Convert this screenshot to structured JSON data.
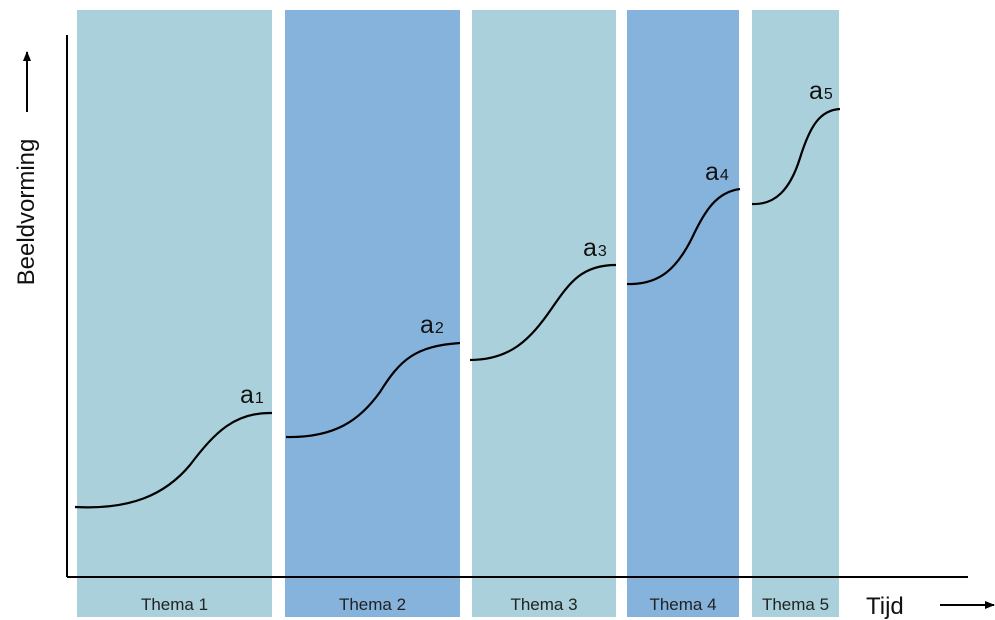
{
  "axes": {
    "y_title": "Beeldvorming",
    "x_title": "Tijd"
  },
  "themes": [
    {
      "label": "Thema 1",
      "shade": "light",
      "curve_letter": "a",
      "curve_index": "1"
    },
    {
      "label": "Thema 2",
      "shade": "dark",
      "curve_letter": "a",
      "curve_index": "2"
    },
    {
      "label": "Thema 3",
      "shade": "light",
      "curve_letter": "a",
      "curve_index": "3"
    },
    {
      "label": "Thema 4",
      "shade": "dark",
      "curve_letter": "a",
      "curve_index": "4"
    },
    {
      "label": "Thema 5",
      "shade": "light",
      "curve_letter": "a",
      "curve_index": "5"
    }
  ],
  "colors": {
    "light_band": "#aad0dc",
    "dark_band": "#86b3dc",
    "axis": "#000000",
    "curve": "#000000"
  }
}
